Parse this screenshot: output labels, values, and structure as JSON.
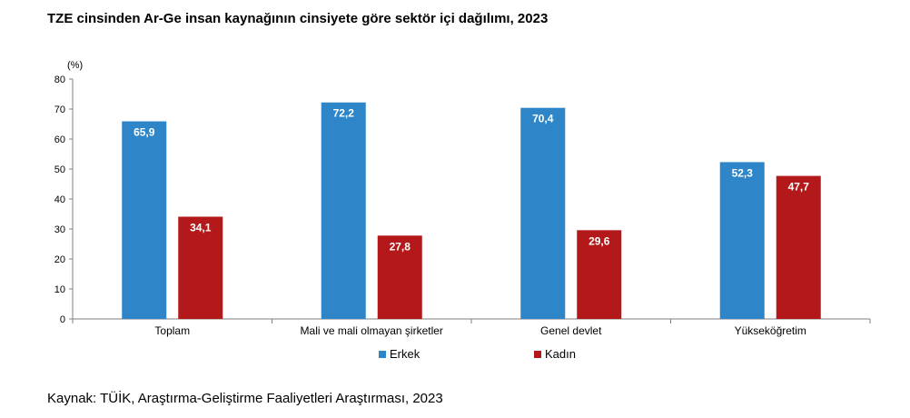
{
  "title": "TZE cinsinden Ar-Ge insan kaynağının cinsiyete göre sektör içi dağılımı, 2023",
  "source": "Kaynak: TÜİK, Araştırma-Geliştirme Faaliyetleri Araştırması, 2023",
  "chart_data": {
    "type": "bar",
    "title": "TZE cinsinden Ar-Ge insan kaynağının cinsiyete göre sektör içi dağılımı, 2023",
    "ylabel": "(%)",
    "xlabel": "",
    "ylim": [
      0,
      80
    ],
    "yticks": [
      0,
      10,
      20,
      30,
      40,
      50,
      60,
      70,
      80
    ],
    "categories": [
      "Toplam",
      "Mali ve mali olmayan şirketler",
      "Genel devlet",
      "Yükseköğretim"
    ],
    "series": [
      {
        "name": "Erkek",
        "color": "#2E86C8",
        "values": [
          65.9,
          72.2,
          70.4,
          52.3
        ],
        "labels": [
          "65,9",
          "72,2",
          "70,4",
          "52,3"
        ]
      },
      {
        "name": "Kadın",
        "color": "#B3191A",
        "values": [
          34.1,
          27.8,
          29.6,
          47.7
        ],
        "labels": [
          "34,1",
          "27,8",
          "29,6",
          "47,7"
        ]
      }
    ],
    "grid": false,
    "legend": "bottom-center"
  }
}
